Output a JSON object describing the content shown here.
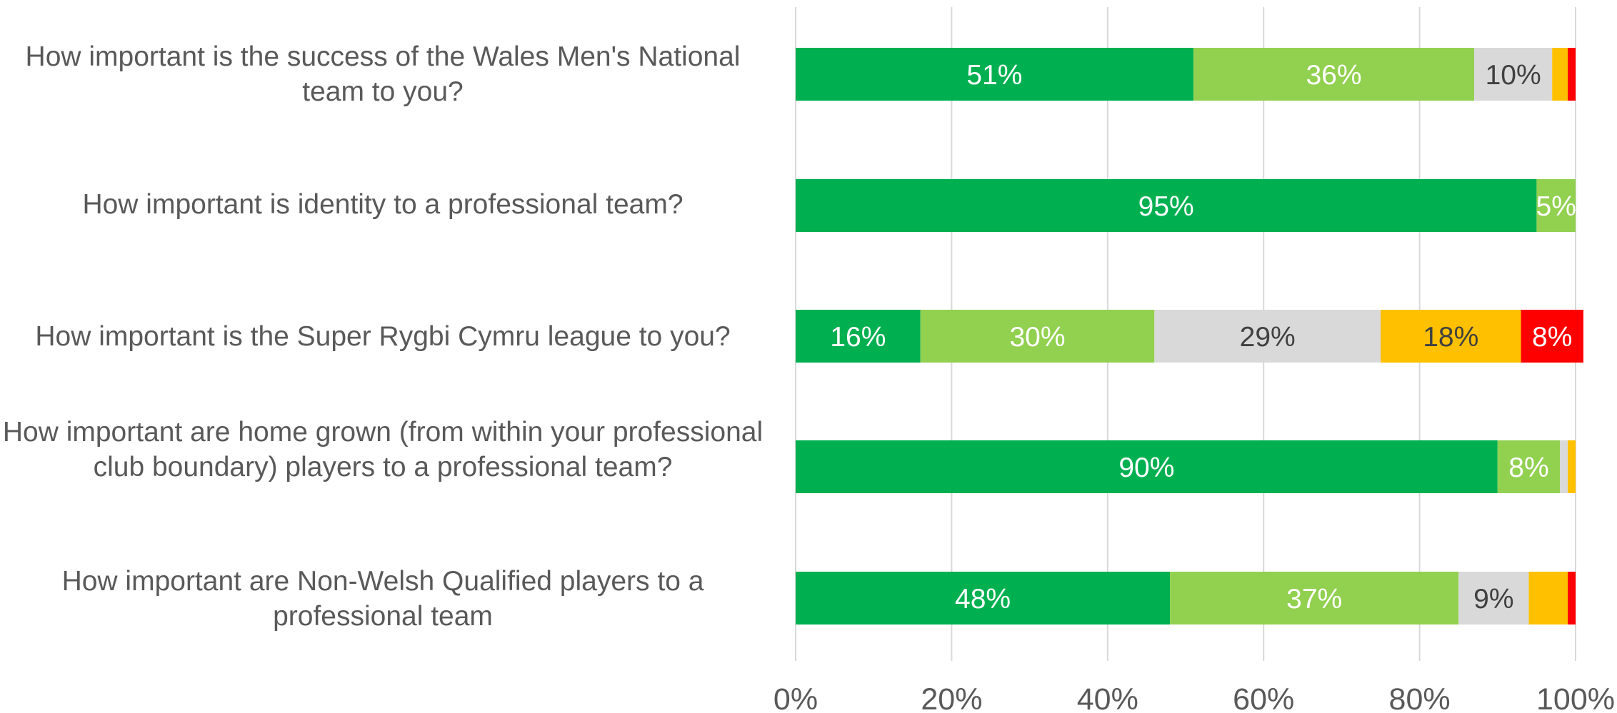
{
  "chart_data": {
    "type": "bar",
    "orientation": "horizontal",
    "stacked": true,
    "title": "",
    "xlabel": "",
    "ylabel": "",
    "xlim": [
      0,
      100
    ],
    "x_ticks": [
      "0%",
      "20%",
      "40%",
      "60%",
      "80%",
      "100%"
    ],
    "grid": "vertical",
    "legend": "none",
    "categories": [
      "How important is the success of the Wales Men's National team to you?",
      "How important is identity to a professional team?",
      "How important is the Super Rygbi Cymru league to you?",
      "How important are home grown (from within your professional club boundary) players to a professional team?",
      "How important are Non-Welsh Qualified players to a professional team"
    ],
    "series": [
      {
        "color": "#00B050",
        "values": [
          51,
          95,
          16,
          90,
          48
        ],
        "labels": [
          "51%",
          "95%",
          "16%",
          "90%",
          "48%"
        ]
      },
      {
        "color": "#92D050",
        "values": [
          36,
          5,
          30,
          8,
          37
        ],
        "labels": [
          "36%",
          "5%",
          "30%",
          "8%",
          "37%"
        ]
      },
      {
        "color": "#D9D9D9",
        "values": [
          10,
          0,
          29,
          1,
          9
        ],
        "labels": [
          "10%",
          "",
          "29%",
          "",
          "9%"
        ]
      },
      {
        "color": "#FFC000",
        "values": [
          2,
          0,
          18,
          1,
          5
        ],
        "labels": [
          "",
          "",
          "18%",
          "",
          ""
        ]
      },
      {
        "color": "#FF0000",
        "values": [
          1,
          0,
          8,
          0,
          1
        ],
        "labels": [
          "",
          "",
          "8%",
          "",
          ""
        ]
      }
    ]
  },
  "colors": {
    "label_text": "#595959",
    "gridline": "#D9D9D9",
    "label_on_dark": "#FFFFFF",
    "label_on_light": "#404040"
  }
}
